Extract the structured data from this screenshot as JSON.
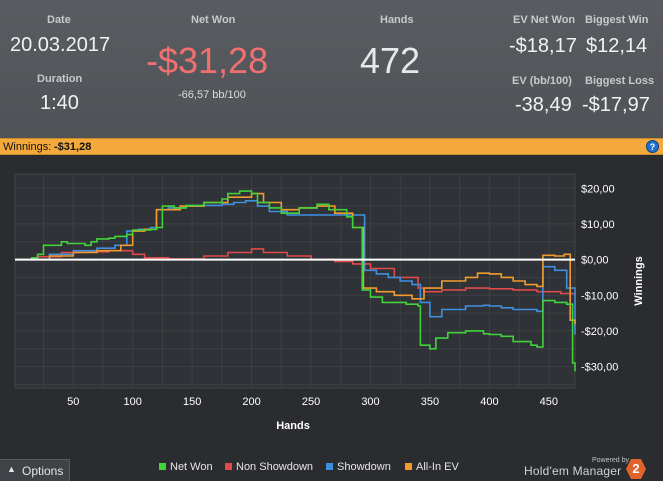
{
  "summary": {
    "date_label": "Date",
    "date_value": "20.03.2017",
    "duration_label": "Duration",
    "duration_value": "1:40",
    "net_won_label": "Net Won",
    "net_won_value": "-$31,28",
    "bb_per_100": "-66,57 bb/100",
    "hands_label": "Hands",
    "hands_value": "472",
    "ev_net_won_label": "EV Net Won",
    "ev_net_won_value": "-$18,17",
    "biggest_win_label": "Biggest Win",
    "biggest_win_value": "$12,14",
    "ev_bb100_label": "EV (bb/100)",
    "ev_bb100_value": "-38,49",
    "biggest_loss_label": "Biggest Loss",
    "biggest_loss_value": "-$17,97"
  },
  "winnings_bar": {
    "label": "Winnings:",
    "value": "-$31,28",
    "help_glyph": "?"
  },
  "colors": {
    "net_won": "#42d33b",
    "non_showdown": "#e04a4a",
    "showdown": "#3f8fe0",
    "allin_ev": "#f29a2e",
    "negative_value": "#f07070",
    "zero_line": "#ffffff"
  },
  "footer": {
    "options_label": "Options",
    "options_icon": "chevron-up-icon",
    "powered_by": "Powered by",
    "brand": "Hold'em Manager",
    "brand_badge": "2"
  },
  "chart_data": {
    "type": "line",
    "xlabel": "Hands",
    "ylabel": "Winnings",
    "xlim": [
      1,
      472
    ],
    "ylim": [
      -36,
      24
    ],
    "x_ticks": [
      50,
      100,
      150,
      200,
      250,
      300,
      350,
      400,
      450
    ],
    "y_ticks": [
      20,
      10,
      0,
      -10,
      -20,
      -30
    ],
    "y_tick_labels": [
      "$20,00",
      "$10,00",
      "$0,00",
      "-$10,00",
      "-$20,00",
      "-$30,00"
    ],
    "x_tick_labels": [
      "50",
      "100",
      "150",
      "200",
      "250",
      "300",
      "350",
      "400",
      "450"
    ],
    "grid": true,
    "legend": "bottom",
    "series": [
      {
        "name": "Net Won",
        "color": "#42d33b",
        "points": [
          [
            1,
            0
          ],
          [
            15,
            0.5
          ],
          [
            20,
            1.5
          ],
          [
            25,
            4
          ],
          [
            40,
            5
          ],
          [
            45,
            4.5
          ],
          [
            60,
            4
          ],
          [
            65,
            5
          ],
          [
            70,
            5.8
          ],
          [
            80,
            6
          ],
          [
            85,
            6.5
          ],
          [
            95,
            7
          ],
          [
            100,
            8.3
          ],
          [
            115,
            8.5
          ],
          [
            120,
            9
          ],
          [
            125,
            15
          ],
          [
            135,
            14.5
          ],
          [
            145,
            15.2
          ],
          [
            160,
            16
          ],
          [
            175,
            17
          ],
          [
            180,
            18.5
          ],
          [
            190,
            19.2
          ],
          [
            200,
            18.5
          ],
          [
            205,
            16
          ],
          [
            215,
            14.5
          ],
          [
            225,
            13
          ],
          [
            240,
            14.5
          ],
          [
            255,
            15.5
          ],
          [
            265,
            14
          ],
          [
            280,
            12
          ],
          [
            285,
            9
          ],
          [
            290,
            9
          ],
          [
            293,
            -8.5
          ],
          [
            300,
            -10.5
          ],
          [
            310,
            -12
          ],
          [
            330,
            -12.5
          ],
          [
            340,
            -13
          ],
          [
            342,
            -24
          ],
          [
            350,
            -25
          ],
          [
            355,
            -22
          ],
          [
            365,
            -20.5
          ],
          [
            380,
            -20
          ],
          [
            395,
            -20.8
          ],
          [
            400,
            -21
          ],
          [
            410,
            -21.5
          ],
          [
            420,
            -23
          ],
          [
            435,
            -24
          ],
          [
            440,
            -24.5
          ],
          [
            445,
            -11.5
          ],
          [
            455,
            -12
          ],
          [
            465,
            -12.5
          ],
          [
            470,
            -29
          ],
          [
            472,
            -31.28
          ]
        ]
      },
      {
        "name": "Non Showdown",
        "color": "#e04a4a",
        "points": [
          [
            1,
            0
          ],
          [
            20,
            0.8
          ],
          [
            40,
            2
          ],
          [
            60,
            2.2
          ],
          [
            80,
            2.5
          ],
          [
            100,
            1.5
          ],
          [
            110,
            0.5
          ],
          [
            130,
            0.2
          ],
          [
            160,
            1
          ],
          [
            180,
            2
          ],
          [
            200,
            3
          ],
          [
            210,
            2
          ],
          [
            230,
            1
          ],
          [
            250,
            0
          ],
          [
            270,
            -0.5
          ],
          [
            285,
            -1.2
          ],
          [
            300,
            -2.5
          ],
          [
            320,
            -5
          ],
          [
            340,
            -8
          ],
          [
            345,
            -9
          ],
          [
            360,
            -8.5
          ],
          [
            380,
            -8
          ],
          [
            400,
            -8.2
          ],
          [
            420,
            -8.5
          ],
          [
            440,
            -9
          ],
          [
            460,
            -9.5
          ],
          [
            472,
            -10
          ]
        ]
      },
      {
        "name": "Showdown",
        "color": "#3f8fe0",
        "points": [
          [
            1,
            0
          ],
          [
            30,
            1.5
          ],
          [
            50,
            2.5
          ],
          [
            70,
            3.2
          ],
          [
            85,
            4
          ],
          [
            95,
            8
          ],
          [
            100,
            8.2
          ],
          [
            105,
            8.5
          ],
          [
            115,
            9
          ],
          [
            120,
            14
          ],
          [
            130,
            14.5
          ],
          [
            145,
            15
          ],
          [
            160,
            15.2
          ],
          [
            175,
            15.5
          ],
          [
            185,
            16
          ],
          [
            195,
            16.5
          ],
          [
            205,
            15
          ],
          [
            215,
            13.5
          ],
          [
            230,
            12.5
          ],
          [
            245,
            12.5
          ],
          [
            260,
            12.5
          ],
          [
            270,
            12.5
          ],
          [
            280,
            12.5
          ],
          [
            293,
            12.5
          ],
          [
            295,
            -3
          ],
          [
            305,
            -4
          ],
          [
            315,
            -5
          ],
          [
            325,
            -6
          ],
          [
            335,
            -7
          ],
          [
            342,
            -12
          ],
          [
            350,
            -16
          ],
          [
            360,
            -14
          ],
          [
            380,
            -13
          ],
          [
            395,
            -12.8
          ],
          [
            400,
            -13
          ],
          [
            410,
            -13.5
          ],
          [
            420,
            -14
          ],
          [
            440,
            -14.5
          ],
          [
            445,
            -2
          ],
          [
            455,
            -3
          ],
          [
            465,
            -8
          ],
          [
            472,
            -21
          ]
        ]
      },
      {
        "name": "All-In EV",
        "color": "#f29a2e",
        "points": [
          [
            1,
            0
          ],
          [
            30,
            1
          ],
          [
            50,
            2
          ],
          [
            70,
            2.5
          ],
          [
            90,
            4
          ],
          [
            100,
            8
          ],
          [
            110,
            8.5
          ],
          [
            120,
            14
          ],
          [
            140,
            15
          ],
          [
            160,
            16
          ],
          [
            180,
            17.5
          ],
          [
            200,
            18.5
          ],
          [
            210,
            16
          ],
          [
            225,
            14
          ],
          [
            240,
            14.5
          ],
          [
            255,
            15
          ],
          [
            270,
            13
          ],
          [
            285,
            9
          ],
          [
            292,
            9
          ],
          [
            294,
            -8
          ],
          [
            305,
            -9
          ],
          [
            320,
            -10
          ],
          [
            335,
            -11
          ],
          [
            345,
            -8
          ],
          [
            360,
            -6
          ],
          [
            380,
            -5
          ],
          [
            390,
            -3.8
          ],
          [
            400,
            -4
          ],
          [
            410,
            -5
          ],
          [
            420,
            -6
          ],
          [
            430,
            -7
          ],
          [
            440,
            -7.5
          ],
          [
            445,
            1.2
          ],
          [
            455,
            1
          ],
          [
            463,
            1.5
          ],
          [
            468,
            -17
          ],
          [
            472,
            -18.17
          ]
        ]
      }
    ]
  }
}
